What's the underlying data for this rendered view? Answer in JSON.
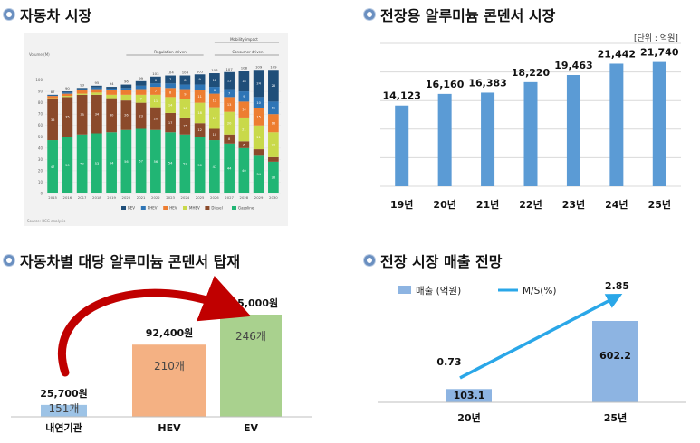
{
  "panels": {
    "p1_title": "자동차 시장",
    "p2_title": "전장용 알루미늄 콘덴서 시장",
    "p3_title": "자동차별 대당 알루미늄 콘덴서 탑재",
    "p4_title": "전장 시장 매출 전망"
  },
  "colors": {
    "bullet": "#6a8fc0",
    "bar_blue": "#5b9bd5",
    "bev": "#1f4e79",
    "phev": "#2e75b6",
    "hev": "#ed7d31",
    "mhev": "#c9d94a",
    "diesel": "#8b4a2b",
    "gasoline": "#21b574",
    "hev_bar": "#f4b183",
    "ev_bar": "#a9d18e",
    "ice_bar": "#9dc3e6",
    "arrow_red": "#c00000",
    "ms_line": "#2aa7e8",
    "sales_bar": "#8db4e2"
  },
  "chart_data": [
    {
      "type": "bar",
      "stacked": true,
      "ylabel": "Volume (M)",
      "ylim": [
        0,
        110
      ],
      "yticks": [
        0,
        10,
        20,
        30,
        40,
        50,
        60,
        70,
        80,
        90,
        100
      ],
      "categories": [
        "2015",
        "2016",
        "2017",
        "2018",
        "2019",
        "2020",
        "2021",
        "2022",
        "2023",
        "2024",
        "2025",
        "2026",
        "2027",
        "2028",
        "2029",
        "2030"
      ],
      "totals": [
        87,
        90,
        93,
        95,
        94,
        96,
        99,
        103,
        104,
        104,
        105,
        106,
        107,
        108,
        109,
        109
      ],
      "series": [
        {
          "name": "Gasoline",
          "values": [
            47,
            50,
            52,
            53,
            54,
            56,
            57,
            56,
            54,
            52,
            50,
            47,
            44,
            40,
            34,
            28
          ]
        },
        {
          "name": "Diesel",
          "values": [
            36,
            35,
            35,
            34,
            30,
            26,
            23,
            20,
            17,
            15,
            12,
            10,
            8,
            6,
            5,
            4
          ]
        },
        {
          "name": "MHEV",
          "values": [
            1,
            1,
            1,
            2,
            3,
            5,
            7,
            11,
            14,
            16,
            18,
            19,
            20,
            21,
            21,
            22
          ]
        },
        {
          "name": "HEV",
          "values": [
            2,
            2,
            3,
            3,
            4,
            4,
            5,
            7,
            8,
            9,
            11,
            12,
            13,
            14,
            15,
            16
          ]
        },
        {
          "name": "PHEV",
          "values": [
            0.5,
            1,
            1,
            1.5,
            1.5,
            2,
            3,
            3,
            4,
            4,
            5,
            6,
            7,
            9,
            10,
            11
          ]
        },
        {
          "name": "BEV",
          "values": [
            0.5,
            1,
            1,
            1.5,
            1.5,
            3,
            4,
            6,
            7,
            8,
            9,
            12,
            15,
            18,
            24,
            28
          ]
        }
      ],
      "annotations": [
        "Mobility impact",
        "Regulation-driven",
        "Consumer-driven"
      ],
      "source": "Source: BCG analysis"
    },
    {
      "type": "bar",
      "unit_label": "[단위 : 억원]",
      "categories": [
        "19년",
        "20년",
        "21년",
        "22년",
        "23년",
        "24년",
        "25년"
      ],
      "values": [
        14123,
        16160,
        16383,
        18220,
        19463,
        21442,
        21740
      ],
      "value_labels": [
        "14,123",
        "16,160",
        "16,383",
        "18,220",
        "19,463",
        "21,442",
        "21,740"
      ],
      "ylim": [
        0,
        25000
      ],
      "grid": true
    },
    {
      "type": "bar",
      "categories": [
        "내연기관",
        "HEV",
        "EV"
      ],
      "counts": [
        151,
        210,
        246
      ],
      "count_labels": [
        "151개",
        "210개",
        "246개"
      ],
      "values": [
        25700,
        92400,
        135000
      ],
      "value_labels": [
        "25,700원",
        "92,400원",
        "135,000원"
      ]
    },
    {
      "type": "bar",
      "categories": [
        "20년",
        "25년"
      ],
      "legend": [
        "매출 (억원)",
        "M/S(%)"
      ],
      "series": [
        {
          "name": "매출 (억원)",
          "values": [
            103.1,
            602.2
          ],
          "labels": [
            "103.1",
            "602.2"
          ]
        },
        {
          "name": "M/S(%)",
          "values": [
            0.73,
            2.85
          ],
          "labels": [
            "0.73",
            "2.85"
          ]
        }
      ]
    }
  ]
}
